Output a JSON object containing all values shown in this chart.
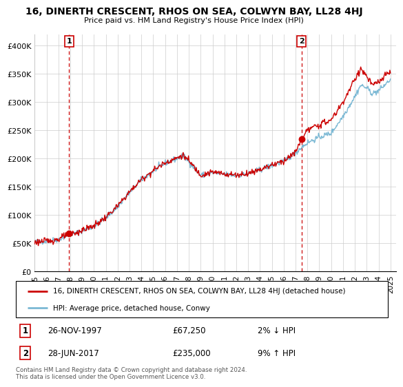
{
  "title": "16, DINERTH CRESCENT, RHOS ON SEA, COLWYN BAY, LL28 4HJ",
  "subtitle": "Price paid vs. HM Land Registry's House Price Index (HPI)",
  "ylim": [
    0,
    420000
  ],
  "yticks": [
    0,
    50000,
    100000,
    150000,
    200000,
    250000,
    300000,
    350000,
    400000
  ],
  "ytick_labels": [
    "£0",
    "£50K",
    "£100K",
    "£150K",
    "£200K",
    "£250K",
    "£300K",
    "£350K",
    "£400K"
  ],
  "xlim_start": 1995.0,
  "xlim_end": 2025.5,
  "sale1_x": 1997.9,
  "sale1_y": 67250,
  "sale1_label": "1",
  "sale2_x": 2017.5,
  "sale2_y": 235000,
  "sale2_label": "2",
  "hpi_color": "#7ab8d4",
  "price_color": "#cc0000",
  "dot_color": "#cc0000",
  "vline_color": "#cc0000",
  "grid_color": "#cccccc",
  "background_color": "#ffffff",
  "legend_line1": "16, DINERTH CRESCENT, RHOS ON SEA, COLWYN BAY, LL28 4HJ (detached house)",
  "legend_line2": "HPI: Average price, detached house, Conwy",
  "table_row1_num": "1",
  "table_row1_date": "26-NOV-1997",
  "table_row1_price": "£67,250",
  "table_row1_hpi": "2% ↓ HPI",
  "table_row2_num": "2",
  "table_row2_date": "28-JUN-2017",
  "table_row2_price": "£235,000",
  "table_row2_hpi": "9% ↑ HPI",
  "footer": "Contains HM Land Registry data © Crown copyright and database right 2024.\nThis data is licensed under the Open Government Licence v3.0.",
  "xtick_years": [
    1995,
    1996,
    1997,
    1998,
    1999,
    2000,
    2001,
    2002,
    2003,
    2004,
    2005,
    2006,
    2007,
    2008,
    2009,
    2010,
    2011,
    2012,
    2013,
    2014,
    2015,
    2016,
    2017,
    2018,
    2019,
    2020,
    2021,
    2022,
    2023,
    2024,
    2025
  ],
  "hpi_anchors_x": [
    1995.0,
    1996.0,
    1997.0,
    1997.9,
    1998.5,
    1999.0,
    2000.0,
    2001.0,
    2002.0,
    2003.0,
    2004.0,
    2005.0,
    2006.0,
    2007.0,
    2007.5,
    2008.0,
    2009.0,
    2010.0,
    2011.0,
    2012.0,
    2013.0,
    2014.0,
    2015.0,
    2016.0,
    2017.0,
    2017.5,
    2018.0,
    2019.0,
    2020.0,
    2021.0,
    2022.0,
    2022.5,
    2023.0,
    2023.5,
    2024.0,
    2024.5,
    2025.0
  ],
  "hpi_anchors_y": [
    52000,
    54000,
    57000,
    65000,
    68000,
    72000,
    80000,
    95000,
    115000,
    140000,
    162000,
    178000,
    192000,
    200000,
    205000,
    195000,
    170000,
    175000,
    172000,
    170000,
    173000,
    180000,
    188000,
    195000,
    210000,
    220000,
    228000,
    238000,
    245000,
    275000,
    310000,
    330000,
    325000,
    315000,
    320000,
    330000,
    340000
  ],
  "price_anchors_x": [
    1995.0,
    1996.0,
    1997.0,
    1997.9,
    1998.5,
    1999.0,
    2000.0,
    2001.0,
    2002.0,
    2003.0,
    2004.0,
    2005.0,
    2006.0,
    2007.0,
    2007.5,
    2008.0,
    2009.0,
    2010.0,
    2011.0,
    2012.0,
    2013.0,
    2014.0,
    2015.0,
    2016.0,
    2017.0,
    2017.5,
    2018.0,
    2019.0,
    2020.0,
    2021.0,
    2022.0,
    2022.5,
    2023.0,
    2023.5,
    2024.0,
    2024.5,
    2025.0
  ],
  "price_anchors_y": [
    52000,
    54000,
    57000,
    67250,
    68000,
    73000,
    81000,
    96000,
    116000,
    141000,
    163000,
    179000,
    193000,
    201000,
    206000,
    196000,
    171000,
    176000,
    173000,
    171000,
    174000,
    181000,
    189000,
    196000,
    211000,
    235000,
    250000,
    260000,
    268000,
    300000,
    340000,
    360000,
    345000,
    330000,
    335000,
    345000,
    355000
  ],
  "hpi_noise_seed": 42,
  "hpi_noise_scale": 2500,
  "price_noise_seed": 123,
  "price_noise_scale": 2800,
  "n_points": 600
}
